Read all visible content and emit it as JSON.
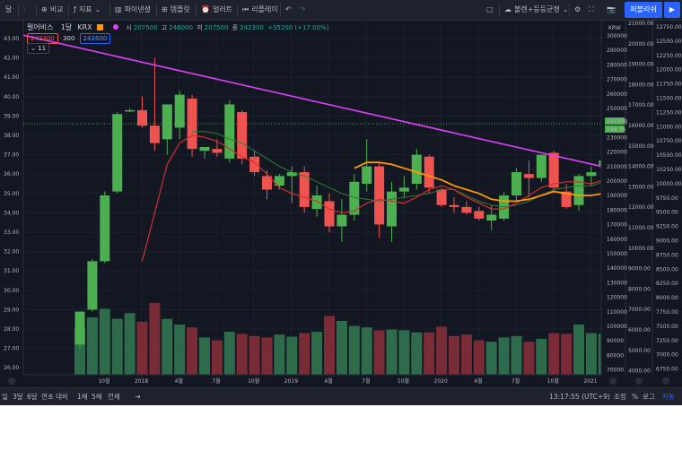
{
  "toolbar": {
    "menu_label": "달",
    "compare_label": "비교",
    "indicators_label": "지표",
    "financials_label": "파이낸셜",
    "templates_label": "템플릿",
    "alert_label": "얼러트",
    "replay_label": "리플레이",
    "layout_label": "불렌+등등균형",
    "publish_label": "퍼블리쉬"
  },
  "legend": {
    "symbol": "펄어비스",
    "interval": "1달",
    "exchange": "KRX",
    "open": "207500",
    "high": "246000",
    "low": "207500",
    "close": "242300",
    "change": "+35200 (+17.00%)",
    "bid": "242300",
    "spread": "300",
    "ask": "242600",
    "indicator_count": "11"
  },
  "bottombar": {
    "range_1d": "일",
    "range_3m": "3달",
    "range_6m": "6달",
    "range_ytd": "연초 대비",
    "range_1y": "1해",
    "range_5y": "5해",
    "range_all": "전체",
    "clock": "13:17:55 (UTC+9)",
    "adjust_label": "조정",
    "percent_label": "%",
    "log_label": "로그",
    "auto_label": "자동"
  },
  "colors": {
    "up": "#4caf50",
    "down": "#ef5350",
    "volume_up": "#2e6b4a",
    "volume_down": "#7a2c36",
    "trendline": "#e040fb",
    "ma_short": "#d32f2f",
    "ma_mid": "#2e7d32",
    "ma_long": "#ff9800",
    "accent": "#2962ff"
  },
  "chart_data": {
    "type": "candlestick",
    "symbol": "펄어비스",
    "interval": "1M",
    "x_tick_labels": [
      "10월",
      "2018",
      "4월",
      "7월",
      "10월",
      "2019",
      "4월",
      "7월",
      "10월",
      "2020",
      "4월",
      "7월",
      "10월",
      "2021"
    ],
    "candles": [
      {
        "o": 27.2,
        "h": 28.9,
        "l": 27.0,
        "c": 28.9
      },
      {
        "o": 29.0,
        "h": 31.6,
        "l": 28.9,
        "c": 31.5
      },
      {
        "o": 31.5,
        "h": 35.1,
        "l": 31.4,
        "c": 34.9
      },
      {
        "o": 35.1,
        "h": 39.2,
        "l": 35.0,
        "c": 39.1
      },
      {
        "o": 39.3,
        "h": 39.4,
        "l": 39.2,
        "c": 39.3
      },
      {
        "o": 39.3,
        "h": 40.0,
        "l": 38.4,
        "c": 38.5
      },
      {
        "o": 38.5,
        "h": 42.0,
        "l": 37.2,
        "c": 37.6
      },
      {
        "o": 37.8,
        "h": 39.6,
        "l": 37.0,
        "c": 39.6
      },
      {
        "o": 38.4,
        "h": 40.3,
        "l": 37.8,
        "c": 40.1
      },
      {
        "o": 39.9,
        "h": 40.1,
        "l": 36.9,
        "c": 37.3
      },
      {
        "o": 37.2,
        "h": 37.4,
        "l": 36.8,
        "c": 37.4
      },
      {
        "o": 37.3,
        "h": 37.8,
        "l": 36.9,
        "c": 37.1
      },
      {
        "o": 36.8,
        "h": 39.8,
        "l": 36.6,
        "c": 39.6
      },
      {
        "o": 39.2,
        "h": 39.3,
        "l": 36.5,
        "c": 36.8
      },
      {
        "o": 36.9,
        "h": 37.2,
        "l": 35.9,
        "c": 36.1
      },
      {
        "o": 35.9,
        "h": 36.2,
        "l": 34.7,
        "c": 35.2
      },
      {
        "o": 35.4,
        "h": 36.0,
        "l": 35.2,
        "c": 35.9
      },
      {
        "o": 35.9,
        "h": 36.4,
        "l": 34.5,
        "c": 36.1
      },
      {
        "o": 36.1,
        "h": 36.4,
        "l": 34.0,
        "c": 34.3
      },
      {
        "o": 34.2,
        "h": 35.4,
        "l": 33.8,
        "c": 34.9
      },
      {
        "o": 34.6,
        "h": 35.0,
        "l": 33.0,
        "c": 33.3
      },
      {
        "o": 33.3,
        "h": 34.7,
        "l": 32.5,
        "c": 33.9
      },
      {
        "o": 33.9,
        "h": 36.0,
        "l": 33.6,
        "c": 35.6
      },
      {
        "o": 35.5,
        "h": 37.8,
        "l": 35.1,
        "c": 36.4
      },
      {
        "o": 36.4,
        "h": 36.6,
        "l": 32.7,
        "c": 33.4
      },
      {
        "o": 33.3,
        "h": 35.6,
        "l": 32.5,
        "c": 35.1
      },
      {
        "o": 35.1,
        "h": 35.9,
        "l": 34.8,
        "c": 35.3
      },
      {
        "o": 35.5,
        "h": 37.3,
        "l": 35.2,
        "c": 37.0
      },
      {
        "o": 36.9,
        "h": 37.0,
        "l": 35.0,
        "c": 35.3
      },
      {
        "o": 35.2,
        "h": 35.3,
        "l": 34.3,
        "c": 34.4
      },
      {
        "o": 34.4,
        "h": 34.8,
        "l": 34.0,
        "c": 34.3
      },
      {
        "o": 34.3,
        "h": 34.6,
        "l": 33.9,
        "c": 34.0
      },
      {
        "o": 34.1,
        "h": 34.3,
        "l": 33.6,
        "c": 33.7
      },
      {
        "o": 33.6,
        "h": 34.4,
        "l": 33.1,
        "c": 33.9
      },
      {
        "o": 33.7,
        "h": 35.1,
        "l": 33.6,
        "c": 34.9
      },
      {
        "o": 34.9,
        "h": 36.3,
        "l": 34.6,
        "c": 36.1
      },
      {
        "o": 36.0,
        "h": 36.7,
        "l": 34.8,
        "c": 35.8
      },
      {
        "o": 35.8,
        "h": 37.0,
        "l": 35.6,
        "c": 37.0
      },
      {
        "o": 37.1,
        "h": 37.2,
        "l": 35.1,
        "c": 35.3
      },
      {
        "o": 35.1,
        "h": 35.5,
        "l": 34.2,
        "c": 34.3
      },
      {
        "o": 34.4,
        "h": 36.0,
        "l": 34.1,
        "c": 35.9
      },
      {
        "o": 35.9,
        "h": 36.4,
        "l": 35.4,
        "c": 36.1
      },
      {
        "o": 36.4,
        "h": 36.8,
        "l": 36.1,
        "c": 36.7
      },
      {
        "o": 36.5,
        "h": 38.8,
        "l": 36.3,
        "c": 38.6
      }
    ],
    "volume": [
      64,
      80,
      92,
      78,
      86,
      74,
      100,
      78,
      70,
      66,
      52,
      48,
      60,
      57,
      54,
      52,
      56,
      53,
      58,
      60,
      82,
      75,
      68,
      66,
      62,
      63,
      62,
      59,
      59,
      67,
      54,
      56,
      48,
      46,
      52,
      54,
      46,
      50,
      58,
      57,
      70,
      58,
      57,
      48
    ],
    "trendline": {
      "start": {
        "x": 0,
        "y": 42.8
      },
      "end": {
        "x": 43.8,
        "y": 36.4
      }
    },
    "ma_short": [
      null,
      null,
      null,
      null,
      null,
      31.5,
      34.0,
      36.5,
      37.6,
      38.0,
      37.9,
      37.7,
      37.3,
      36.9,
      36.6,
      36.0,
      35.3,
      35.0,
      34.8,
      34.6,
      34.2,
      34.0,
      34.1,
      34.5,
      34.7,
      34.6,
      34.5,
      34.8,
      35.2,
      35.4,
      35.2,
      34.8,
      34.5,
      34.2,
      34.2,
      34.5,
      34.9,
      35.3,
      35.5,
      35.6,
      35.6,
      35.5,
      35.7,
      36.2
    ],
    "ma_mid": [
      null,
      null,
      null,
      null,
      null,
      null,
      null,
      null,
      null,
      38.2,
      38.2,
      38.1,
      37.8,
      37.6,
      37.2,
      36.8,
      36.4,
      36.1,
      35.9,
      35.6,
      35.3,
      35.0,
      34.8,
      34.7,
      34.6,
      34.7,
      34.8,
      34.9,
      35.0,
      35.2,
      35.2,
      34.9,
      34.6,
      34.4,
      34.3,
      34.4,
      34.6,
      34.9,
      35.2,
      35.3,
      35.4,
      35.4,
      35.6,
      35.9
    ],
    "ma_long": [
      null,
      null,
      null,
      null,
      null,
      null,
      null,
      null,
      null,
      null,
      null,
      null,
      null,
      null,
      null,
      null,
      null,
      null,
      null,
      null,
      null,
      null,
      36.3,
      36.6,
      36.6,
      36.5,
      36.3,
      36.1,
      35.9,
      35.7,
      35.4,
      35.2,
      35.0,
      34.7,
      34.6,
      34.6,
      34.7,
      34.9,
      35.1,
      35.0,
      34.9,
      34.9,
      35.0,
      35.4
    ],
    "y_axis_left": {
      "labels": [
        "43.00",
        "42.00",
        "41.00",
        "40.00",
        "39.00",
        "38.00",
        "37.00",
        "36.00",
        "35.00",
        "34.00",
        "33.00",
        "32.00",
        "31.00",
        "30.00",
        "29.00",
        "28.00",
        "27.00",
        "26.00"
      ]
    },
    "y_axis_mid": {
      "labels": [
        "300000",
        "290000",
        "280000",
        "270000",
        "260000",
        "250000",
        "240000",
        "230000",
        "220000",
        "210000",
        "200000",
        "190000",
        "180000",
        "170000",
        "160000",
        "150000",
        "140000",
        "130000",
        "120000",
        "110000",
        "100000",
        "90000",
        "80000",
        "70000"
      ],
      "unit": "KRW"
    },
    "y_axis_right1": {
      "labels": [
        "21000.00",
        "20000.00",
        "19000.00",
        "18000.00",
        "17000.00",
        "16000.00",
        "15000.00",
        "14000.00",
        "13000.00",
        "12000.00",
        "11000.00",
        "10000.00",
        "9000.00",
        "8000.00",
        "7000.00",
        "6000.00",
        "5000.00",
        "4000.00"
      ]
    },
    "y_axis_right2": {
      "labels": [
        "12750.00",
        "12500.00",
        "12250.00",
        "12000.00",
        "11750.00",
        "11500.00",
        "11250.00",
        "11000.00",
        "10750.00",
        "10500.00",
        "10250.00",
        "10000.00",
        "9750.00",
        "9500.00",
        "9250.00",
        "9000.00",
        "8750.00",
        "8500.00",
        "8250.00",
        "8000.00",
        "7750.00",
        "7500.00",
        "7250.00",
        "7000.00",
        "6750.00"
      ]
    },
    "last_price_tag": "242300",
    "countdown_tag": "19d 3h"
  }
}
